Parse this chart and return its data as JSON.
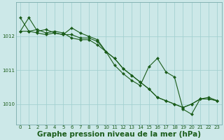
{
  "background_color": "#cce8e8",
  "plot_bg_color": "#cce8e8",
  "line_color": "#1a5c1a",
  "grid_color": "#9ecece",
  "xlabel": "Graphe pression niveau de la mer (hPa)",
  "xlabel_fontsize": 7.5,
  "xlabel_bold": true,
  "ylim": [
    1009.4,
    1013.0
  ],
  "xlim": [
    -0.5,
    23.5
  ],
  "yticks": [
    1010,
    1011,
    1012
  ],
  "xticks": [
    0,
    1,
    2,
    3,
    4,
    5,
    6,
    7,
    8,
    9,
    10,
    11,
    12,
    13,
    14,
    15,
    16,
    17,
    18,
    19,
    20,
    21,
    22,
    23
  ],
  "series": [
    [
      1012.15,
      1012.55,
      1012.15,
      1012.2,
      1012.1,
      1012.05,
      1012.05,
      1011.95,
      1011.95,
      1011.85,
      1011.55,
      1011.35,
      1011.05,
      1010.85,
      1010.65,
      1010.45,
      1010.2,
      1010.1,
      1010.0,
      1009.9,
      1010.0,
      1010.15,
      1010.15,
      1010.1
    ],
    [
      1012.55,
      1012.15,
      1012.1,
      1012.05,
      1012.1,
      1012.05,
      1012.25,
      1012.1,
      1012.0,
      1011.9,
      1011.55,
      1011.15,
      1010.9,
      1010.7,
      1010.55,
      1011.1,
      1011.35,
      1010.95,
      1010.8,
      1009.85,
      1009.7,
      1010.15,
      1010.2,
      1010.1
    ],
    [
      1012.15,
      1012.15,
      1012.2,
      1012.1,
      1012.15,
      1012.1,
      1011.95,
      1011.9,
      1011.9,
      1011.75,
      1011.55,
      1011.35,
      1011.05,
      1010.85,
      1010.65,
      1010.45,
      1010.2,
      1010.1,
      1010.0,
      1009.9,
      1010.0,
      1010.15,
      1010.15,
      1010.1
    ]
  ],
  "marker": "D",
  "marker_size": 2.0,
  "line_width": 0.8,
  "tick_fontsize": 5.0,
  "tick_color": "#1a5c1a",
  "spine_color": "#7aabab"
}
